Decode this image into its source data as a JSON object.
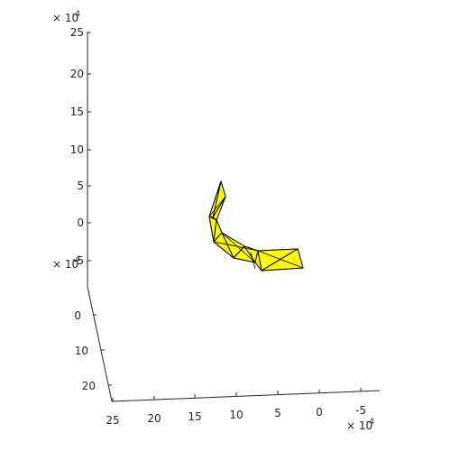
{
  "chart_data": {
    "type": "3d-surface",
    "title": "",
    "grid": false,
    "colors": {
      "face": "#ffff00",
      "edge": "#000000",
      "axis": "#262626"
    },
    "z_axis": {
      "exponent_base": "× 10",
      "exponent_power": "-4",
      "ticks": [
        "25",
        "20",
        "15",
        "10",
        "5",
        "0",
        "-5"
      ]
    },
    "y_axis": {
      "exponent_base": "× 10",
      "exponent_power": "-4",
      "ticks": [
        "0",
        "10",
        "20"
      ]
    },
    "x_axis": {
      "exponent_base": "× 10",
      "exponent_power": "-4",
      "ticks": [
        "25",
        "20",
        "15",
        "10",
        "5",
        "0",
        "-5"
      ]
    }
  }
}
